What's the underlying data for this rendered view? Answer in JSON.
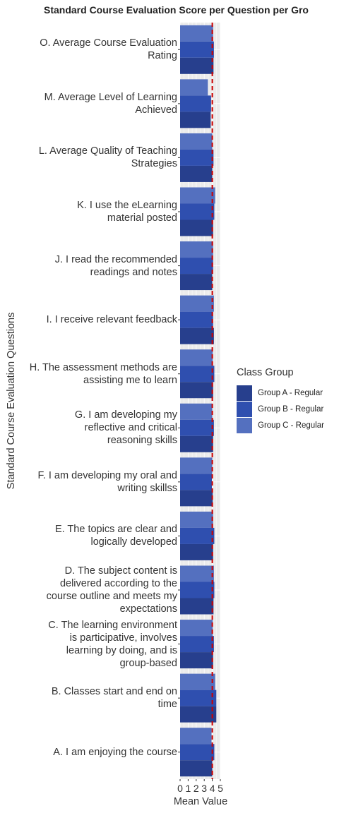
{
  "chart_data": {
    "type": "bar",
    "orientation": "horizontal",
    "title": "Standard Course Evaluation Score per Question per Gro",
    "xlabel": "Mean Value",
    "ylabel": "Standard Course Evaluation Questions",
    "xlim": [
      0,
      5
    ],
    "x_ticks": [
      "0",
      "1",
      "2",
      "3",
      "4",
      "5"
    ],
    "reference_line": {
      "value": 4,
      "color": "#cc0000",
      "style": "dashed"
    },
    "legend": {
      "title": "Class Group",
      "position": "right"
    },
    "categories": [
      [
        "O. Average Course Evaluation",
        "Rating"
      ],
      [
        "M. Average Level of Learning",
        "Achieved"
      ],
      [
        "L. Average Quality of Teaching",
        "Strategies"
      ],
      [
        "K. I use the eLearning",
        "material posted"
      ],
      [
        "J. I read the recommended",
        "readings and notes"
      ],
      [
        "I. I receive relevant feedback"
      ],
      [
        "H. The assessment methods are",
        "assisting me to learn"
      ],
      [
        "G. I am developing my",
        "reflective and critical",
        "reasoning skills"
      ],
      [
        "F. I am developing my oral and",
        "writing skillss"
      ],
      [
        "E. The topics are clear and",
        "logically developed"
      ],
      [
        "D. The subject content is",
        "delivered according to the",
        "course outline and meets my",
        "expectations"
      ],
      [
        "C. The learning environment",
        "is participative, involves",
        "learning by doing, and is",
        "group-based"
      ],
      [
        "B. Classes start and end on",
        "time"
      ],
      [
        "A. I am enjoying the course"
      ]
    ],
    "series": [
      {
        "name": "Group A - Regular",
        "color": "#273f8d",
        "values": [
          4.15,
          3.8,
          4.0,
          4.1,
          4.0,
          4.2,
          4.1,
          4.1,
          4.05,
          4.1,
          4.15,
          4.1,
          4.5,
          4.0
        ]
      },
      {
        "name": "Group B - Regular",
        "color": "#2f4faf",
        "values": [
          4.2,
          3.85,
          4.15,
          4.25,
          4.1,
          4.1,
          4.25,
          4.2,
          3.95,
          4.25,
          4.25,
          4.2,
          4.5,
          4.25
        ]
      },
      {
        "name": "Group C - Regular",
        "color": "#5470bf",
        "values": [
          4.1,
          3.45,
          4.0,
          4.35,
          4.1,
          4.2,
          4.05,
          4.0,
          4.0,
          4.1,
          4.2,
          4.05,
          4.35,
          3.9
        ]
      }
    ],
    "grid": true
  }
}
